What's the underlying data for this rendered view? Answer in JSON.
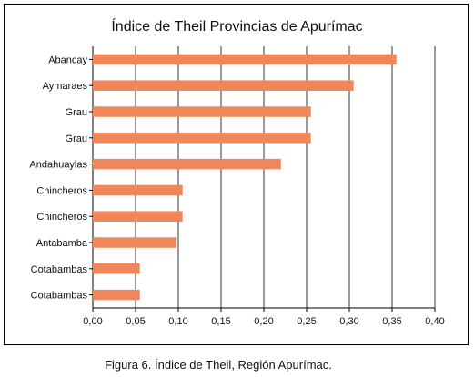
{
  "caption": "Figura 6. Índice de Theil, Región Apurímac.",
  "chart_data": {
    "type": "bar",
    "orientation": "horizontal",
    "title": "Índice de Theil Provincias de Apurímac",
    "xlabel": "",
    "ylabel": "",
    "categories": [
      "Abancay",
      "Aymaraes",
      "Grau",
      "Grau",
      "Andahuaylas",
      "Chincheros",
      "Chincheros",
      "Antabamba",
      "Cotabambas",
      "Cotabambas"
    ],
    "values": [
      0.355,
      0.305,
      0.255,
      0.255,
      0.22,
      0.105,
      0.105,
      0.098,
      0.055,
      0.055
    ],
    "xlim": [
      0,
      0.4
    ],
    "xticks": [
      "0,00",
      "0,05",
      "0,10",
      "0,15",
      "0,20",
      "0,25",
      "0,30",
      "0,35",
      "0,40"
    ],
    "grid": "vertical",
    "bar_color": "#F0875A"
  }
}
